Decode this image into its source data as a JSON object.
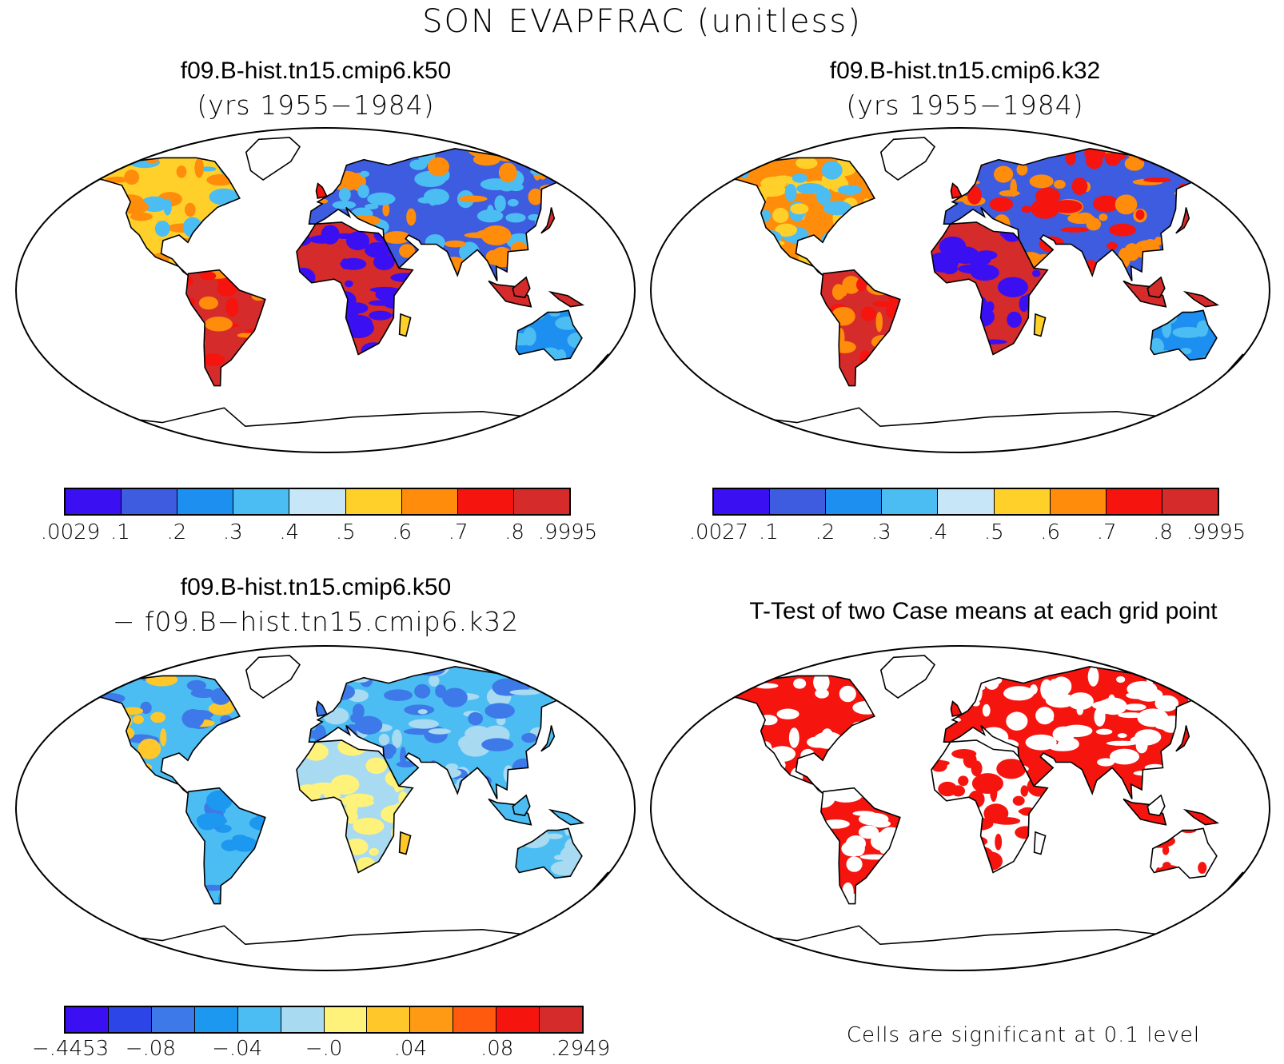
{
  "main_title": "SON EVAPFRAC (unitless)",
  "panels": [
    {
      "title": "f09.B-hist.tn15.cmip6.k50",
      "subtitle": "(yrs 1955−1984)"
    },
    {
      "title": "f09.B-hist.tn15.cmip6.k32",
      "subtitle": "(yrs 1955−1984)"
    },
    {
      "title": "f09.B-hist.tn15.cmip6.k50",
      "subtitle": "− f09.B−hist.tn15.cmip6.k32"
    },
    {
      "title": "T-Test of two Case means at each grid point",
      "subtitle": ""
    }
  ],
  "colorbars": {
    "case1": {
      "colors": [
        "#3a10f2",
        "#3d5ce0",
        "#1c8ff0",
        "#4cbdf2",
        "#c7e6f7",
        "#ffd029",
        "#ff8c0a",
        "#f5140e",
        "#d62b2b"
      ],
      "labels": [
        ".0029",
        ".1",
        ".2",
        ".3",
        ".4",
        ".5",
        ".6",
        ".7",
        ".8",
        ".9995"
      ]
    },
    "case2": {
      "colors": [
        "#3a10f2",
        "#3d5ce0",
        "#1c8ff0",
        "#4cbdf2",
        "#c7e6f7",
        "#ffd029",
        "#ff8c0a",
        "#f5140e",
        "#d62b2b"
      ],
      "labels": [
        ".0027",
        ".1",
        ".2",
        ".3",
        ".4",
        ".5",
        ".6",
        ".7",
        ".8",
        ".9995"
      ]
    },
    "diff": {
      "colors": [
        "#3a10f2",
        "#2c45e6",
        "#3d79e8",
        "#1c98f0",
        "#4cbdf2",
        "#a8daf2",
        "#fff27a",
        "#ffc72a",
        "#ff9a14",
        "#ff5a0e",
        "#f5140e",
        "#d62b2b"
      ],
      "labels": [
        "−.4453",
        "−.08",
        "−.04",
        "−.0",
        ".04",
        ".08",
        ".2949"
      ]
    }
  },
  "ttest_note": "Cells are significant at 0.1 level",
  "ttest_color": "#f5140e",
  "land_outline_color": "#000000"
}
